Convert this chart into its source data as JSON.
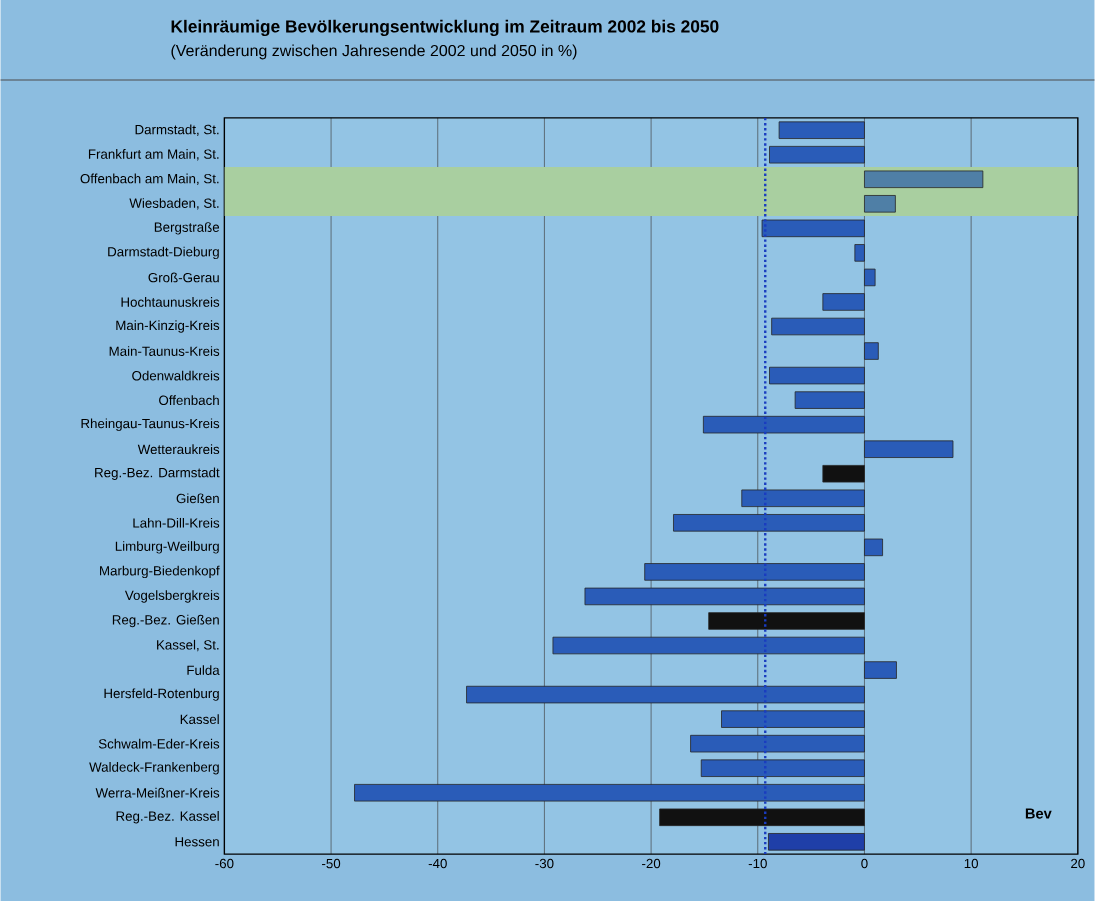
{
  "chart_data": {
    "type": "bar",
    "orientation": "horizontal",
    "title": "Kleinräumige Bevölkerungsentwicklung im Zeitraum 2002 bis 2050",
    "subtitle": "(Veränderung zwischen Jahresende 2002 und 2050 in %)",
    "categories": [
      "Darmstadt, St.",
      "Frankfurt am Main, St.",
      "Offenbach am Main, St.",
      "Wiesbaden, St.",
      "Bergstraße",
      "Darmstadt-Dieburg",
      "Groß-Gerau",
      "Hochtaunuskreis",
      "Main-Kinzig-Kreis",
      "Main-Taunus-Kreis",
      "Odenwaldkreis",
      "Offenbach",
      "Rheingau-Taunus-Kreis",
      "Wetteraukreis",
      "Reg.-Bez. Darmstadt",
      "Gießen",
      "Lahn-Dill-Kreis",
      "Limburg-Weilburg",
      "Marburg-Biedenkopf",
      "Vogelsbergkreis",
      "Reg.-Bez. Gießen",
      "Kassel, St.",
      "Fulda",
      "Hersfeld-Rotenburg",
      "Kassel",
      "Schwalm-Eder-Kreis",
      "Waldeck-Frankenberg",
      "Werra-Meißner-Kreis",
      "Reg.-Bez. Kassel",
      "Hessen"
    ],
    "values": [
      -8.0,
      -8.9,
      11.1,
      2.9,
      -9.6,
      -0.9,
      1.0,
      -3.9,
      -8.7,
      1.3,
      -8.9,
      -6.5,
      -15.1,
      8.3,
      -3.9,
      -11.5,
      -17.9,
      1.7,
      -20.6,
      -26.2,
      -14.6,
      -29.2,
      3.0,
      -37.3,
      -13.4,
      -16.3,
      -15.3,
      -47.8,
      -19.2,
      -9.0
    ],
    "colors": [
      "#2a5cb8",
      "#2a5cb8",
      "#4f7fa6",
      "#4f7fa6",
      "#2a5cb8",
      "#2a5cb8",
      "#2a5cb8",
      "#2a5cb8",
      "#2a5cb8",
      "#2a5cb8",
      "#2a5cb8",
      "#2a5cb8",
      "#2a5cb8",
      "#2a5cb8",
      "#111111",
      "#2a5cb8",
      "#2a5cb8",
      "#2a5cb8",
      "#2a5cb8",
      "#2a5cb8",
      "#111111",
      "#2a5cb8",
      "#2a5cb8",
      "#2a5cb8",
      "#2a5cb8",
      "#2a5cb8",
      "#2a5cb8",
      "#2a5cb8",
      "#111111",
      "#1f3fa8"
    ],
    "xlim": [
      -60,
      20
    ],
    "xticks": [
      -60,
      -50,
      -40,
      -30,
      -20,
      -10,
      0,
      10,
      20
    ],
    "grid": "x",
    "ref_lines": [
      {
        "axis": "x",
        "value": -9.3,
        "color": "#1a3cc0",
        "line_style": "dotted"
      }
    ],
    "bands": [
      {
        "axis": "y",
        "from": "Offenbach am Main, St.",
        "to": "Wiesbaden, St.",
        "color": "#a9cfa0"
      }
    ],
    "annotations": [
      "Bev"
    ]
  }
}
